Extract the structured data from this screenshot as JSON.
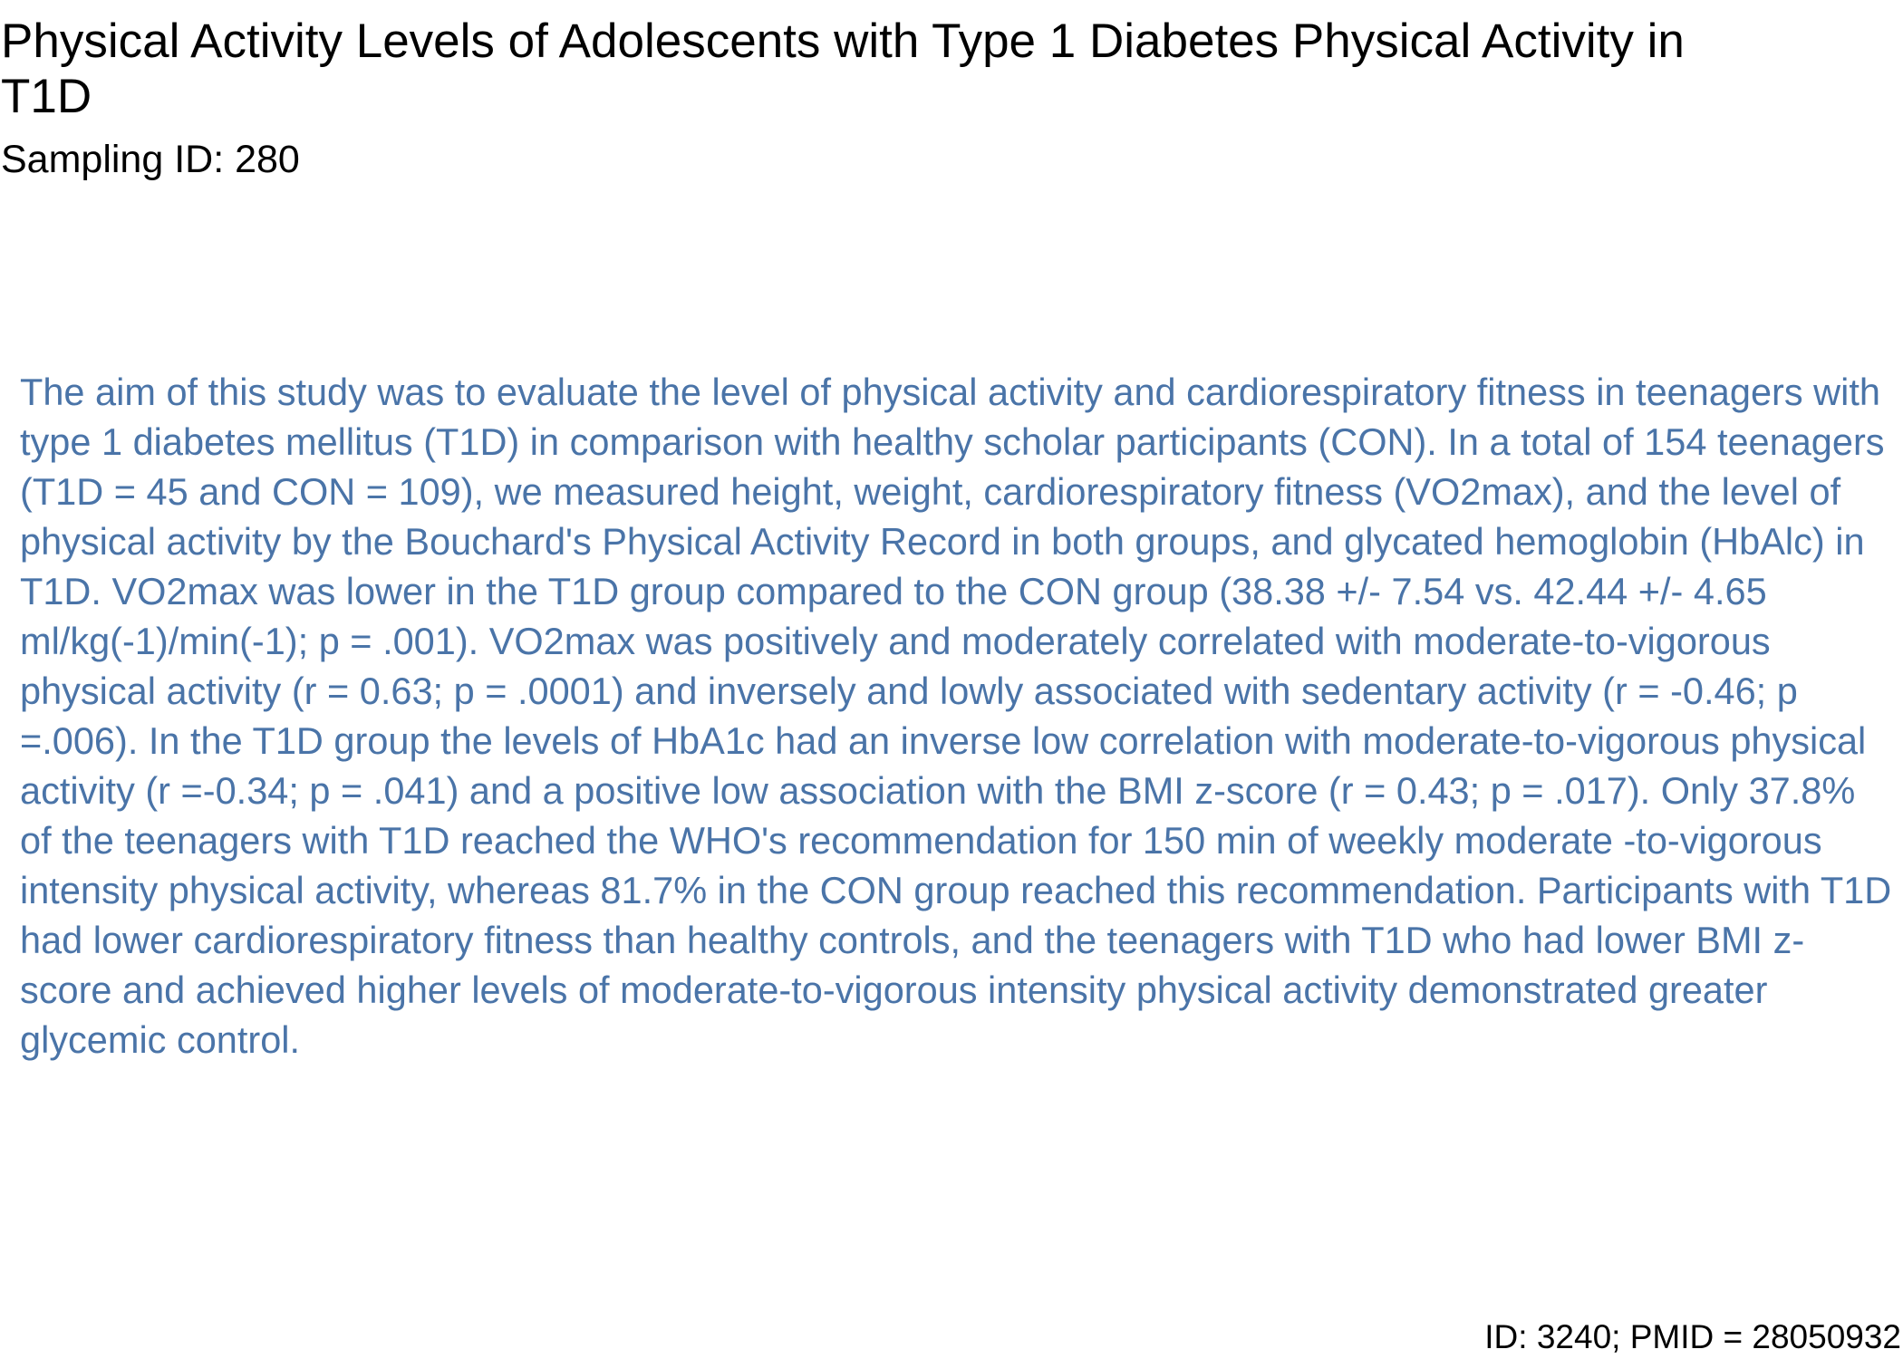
{
  "document": {
    "title": "Physical Activity Levels of Adolescents with Type 1 Diabetes Physical Activity in T1D",
    "subtitle": "Sampling ID: 280",
    "abstract": "The aim of this study was to evaluate the level of physical activity and cardiorespiratory fitness in teenagers with type 1 diabetes mellitus (T1D) in comparison with healthy scholar participants (CON). In a total of 154 teenagers (T1D = 45 and CON = 109), we measured height, weight, cardiorespiratory fitness (VO2max), and the level of physical activity by the Bouchard's Physical Activity Record in both groups, and glycated hemoglobin (HbAlc) in T1D. VO2max was lower in the T1D group compared to the CON group (38.38 +/- 7.54 vs. 42.44 +/- 4.65 ml/kg(-1)/min(-1); p = .001). VO2max was positively and moderately correlated with moderate-to-vigorous physical activity (r = 0.63; p = .0001) and inversely and lowly associated with sedentary activity (r = -0.46; p =.006). In the T1D group the levels of HbA1c had an inverse low correlation with moderate-to-vigorous physical activity (r =-0.34; p = .041) and a positive low association with the BMI z-score (r = 0.43; p = .017). Only 37.8% of the teenagers with T1D reached the WHO's recommendation for 150 min of weekly moderate -to-vigorous intensity physical activity, whereas 81.7% in the CON group reached this recommendation. Participants with T1D had lower cardiorespiratory fitness than healthy controls, and the teenagers with T1D who had lower BMI z-score and achieved higher levels of moderate-to-vigorous intensity physical activity demonstrated greater glycemic control.",
    "footer": "ID: 3240; PMID = 28050932"
  },
  "colors": {
    "title": "#000000",
    "abstract_text": "#4a74a8",
    "background": "#ffffff"
  }
}
